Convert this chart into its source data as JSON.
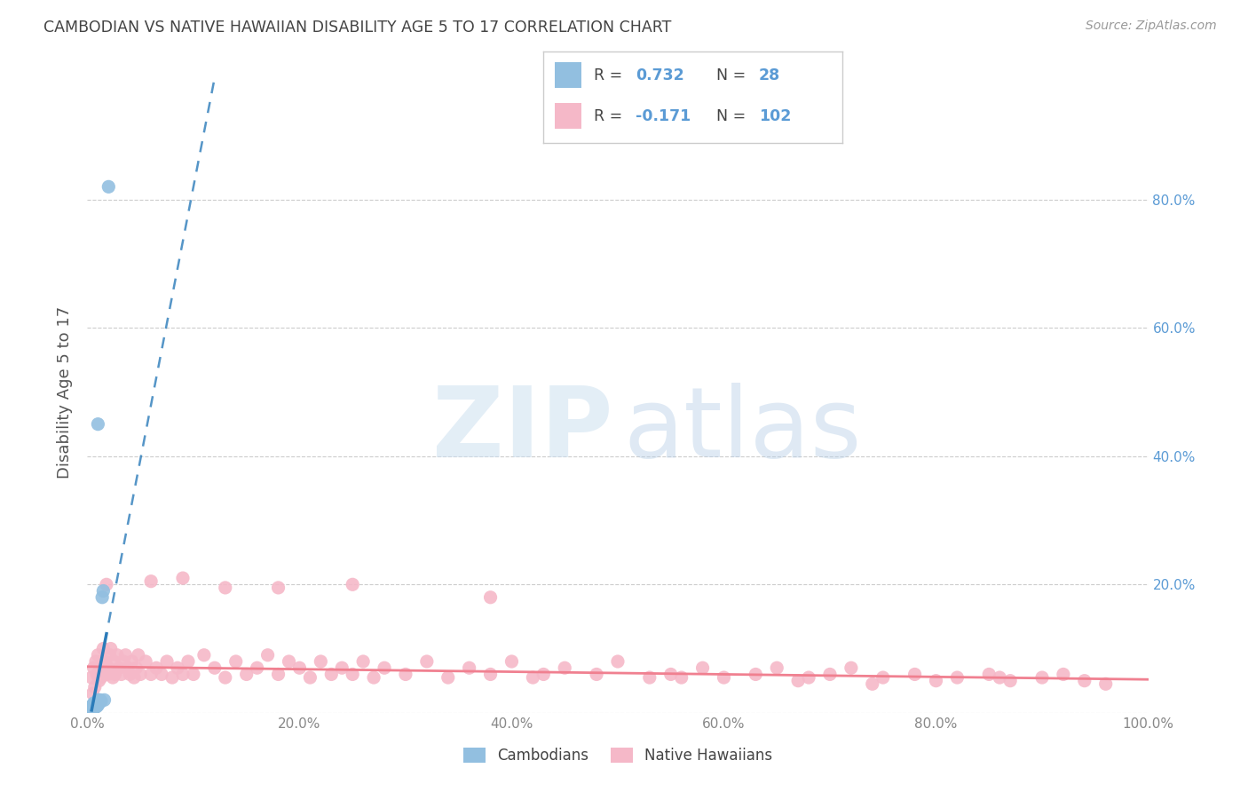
{
  "title": "CAMBODIAN VS NATIVE HAWAIIAN DISABILITY AGE 5 TO 17 CORRELATION CHART",
  "source": "Source: ZipAtlas.com",
  "ylabel": "Disability Age 5 to 17",
  "xlim": [
    0,
    1.0
  ],
  "ylim": [
    0,
    1.0
  ],
  "xtick_values": [
    0.0,
    0.2,
    0.4,
    0.6,
    0.8,
    1.0
  ],
  "xtick_labels": [
    "0.0%",
    "20.0%",
    "40.0%",
    "60.0%",
    "80.0%",
    "100.0%"
  ],
  "ytick_values": [
    0.0,
    0.2,
    0.4,
    0.6,
    0.8
  ],
  "right_ytick_labels": [
    "",
    "20.0%",
    "40.0%",
    "60.0%",
    "80.0%"
  ],
  "cambodian_color": "#92bfe0",
  "native_hawaiian_color": "#f5b8c8",
  "cambodian_line_color": "#2b7bb9",
  "native_hawaiian_line_color": "#f08090",
  "watermark_zip_color": "#c8dff0",
  "watermark_atlas_color": "#b0cfe8",
  "background_color": "#ffffff",
  "grid_color": "#cccccc",
  "right_axis_color": "#5b9bd5",
  "title_color": "#444444",
  "source_color": "#999999",
  "ylabel_color": "#555555",
  "xtick_color": "#888888",
  "legend_border_color": "#cccccc",
  "cambodian_x": [
    0.003,
    0.004,
    0.004,
    0.005,
    0.005,
    0.005,
    0.006,
    0.006,
    0.006,
    0.007,
    0.007,
    0.007,
    0.008,
    0.008,
    0.009,
    0.009,
    0.01,
    0.01,
    0.01,
    0.011,
    0.011,
    0.012,
    0.013,
    0.014,
    0.015,
    0.016,
    0.01,
    0.02
  ],
  "cambodian_y": [
    0.005,
    0.008,
    0.01,
    0.005,
    0.008,
    0.012,
    0.006,
    0.01,
    0.015,
    0.008,
    0.01,
    0.014,
    0.01,
    0.015,
    0.01,
    0.015,
    0.012,
    0.018,
    0.02,
    0.015,
    0.018,
    0.02,
    0.018,
    0.18,
    0.19,
    0.02,
    0.45,
    0.82
  ],
  "native_hawaiian_x": [
    0.004,
    0.005,
    0.006,
    0.007,
    0.008,
    0.009,
    0.01,
    0.011,
    0.012,
    0.013,
    0.014,
    0.015,
    0.016,
    0.017,
    0.018,
    0.019,
    0.02,
    0.021,
    0.022,
    0.024,
    0.025,
    0.026,
    0.028,
    0.03,
    0.032,
    0.034,
    0.036,
    0.038,
    0.04,
    0.042,
    0.044,
    0.046,
    0.048,
    0.05,
    0.055,
    0.06,
    0.065,
    0.07,
    0.075,
    0.08,
    0.085,
    0.09,
    0.095,
    0.1,
    0.11,
    0.12,
    0.13,
    0.14,
    0.15,
    0.16,
    0.17,
    0.18,
    0.19,
    0.2,
    0.21,
    0.22,
    0.23,
    0.24,
    0.25,
    0.26,
    0.27,
    0.28,
    0.3,
    0.32,
    0.34,
    0.36,
    0.38,
    0.4,
    0.42,
    0.45,
    0.48,
    0.5,
    0.53,
    0.55,
    0.58,
    0.6,
    0.63,
    0.65,
    0.68,
    0.7,
    0.72,
    0.75,
    0.78,
    0.8,
    0.82,
    0.85,
    0.87,
    0.9,
    0.92,
    0.94,
    0.96,
    0.13,
    0.25,
    0.38,
    0.06,
    0.18,
    0.09,
    0.43,
    0.56,
    0.67,
    0.74,
    0.86
  ],
  "native_hawaiian_y": [
    0.055,
    0.03,
    0.07,
    0.04,
    0.08,
    0.06,
    0.09,
    0.05,
    0.07,
    0.055,
    0.08,
    0.1,
    0.06,
    0.08,
    0.2,
    0.06,
    0.07,
    0.09,
    0.1,
    0.055,
    0.08,
    0.06,
    0.09,
    0.07,
    0.06,
    0.08,
    0.09,
    0.07,
    0.06,
    0.08,
    0.055,
    0.07,
    0.09,
    0.06,
    0.08,
    0.06,
    0.07,
    0.06,
    0.08,
    0.055,
    0.07,
    0.06,
    0.08,
    0.06,
    0.09,
    0.07,
    0.055,
    0.08,
    0.06,
    0.07,
    0.09,
    0.06,
    0.08,
    0.07,
    0.055,
    0.08,
    0.06,
    0.07,
    0.06,
    0.08,
    0.055,
    0.07,
    0.06,
    0.08,
    0.055,
    0.07,
    0.06,
    0.08,
    0.055,
    0.07,
    0.06,
    0.08,
    0.055,
    0.06,
    0.07,
    0.055,
    0.06,
    0.07,
    0.055,
    0.06,
    0.07,
    0.055,
    0.06,
    0.05,
    0.055,
    0.06,
    0.05,
    0.055,
    0.06,
    0.05,
    0.045,
    0.195,
    0.2,
    0.18,
    0.205,
    0.195,
    0.21,
    0.06,
    0.055,
    0.05,
    0.045,
    0.055
  ],
  "camb_slope": 8.5,
  "camb_intercept": -0.03,
  "nhaw_slope": -0.02,
  "nhaw_intercept": 0.072
}
